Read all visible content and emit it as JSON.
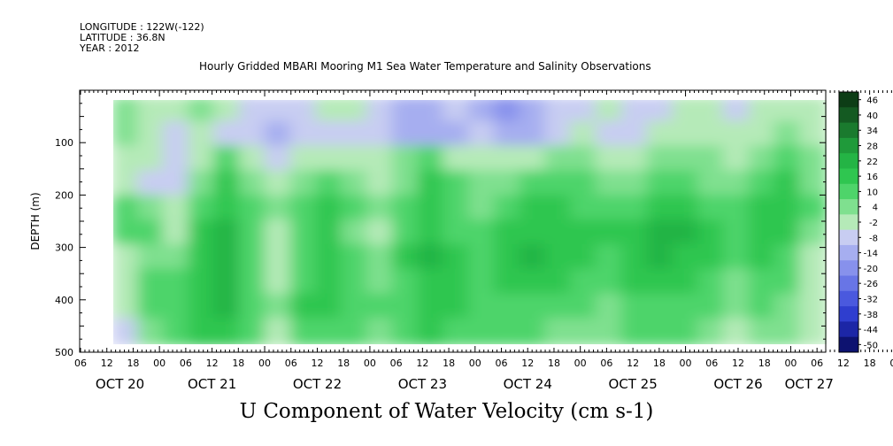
{
  "header": {
    "longitude": "LONGITUDE : 122W(-122)",
    "latitude": "LATITUDE : 36.8N",
    "year": "YEAR : 2012"
  },
  "chart_data": {
    "type": "heatmap",
    "title": "Hourly Gridded MBARI Mooring M1 Sea Water Temperature and Salinity Observations",
    "xlabel": "U Component of Water Velocity (cm s-1)",
    "ylabel": "DEPTH (m)",
    "ylim": [
      500,
      0
    ],
    "y_ticks": [
      100,
      200,
      300,
      400,
      500
    ],
    "x_hour_ticks": [
      "06",
      "12",
      "18",
      "00",
      "06",
      "12",
      "18",
      "00",
      "06",
      "12",
      "18",
      "00",
      "06",
      "12",
      "18",
      "00",
      "06",
      "12",
      "18",
      "00",
      "06",
      "12",
      "18",
      "00",
      "06",
      "12",
      "18",
      "00",
      "06",
      "12",
      "18",
      "00",
      "06"
    ],
    "x_date_labels": [
      "OCT 20",
      "OCT 21",
      "OCT 22",
      "OCT 23",
      "OCT 24",
      "OCT 25",
      "OCT 26",
      "OCT 27"
    ],
    "data_depth_range": [
      15,
      485
    ],
    "colorbar": {
      "levels": [
        46,
        40,
        34,
        28,
        22,
        16,
        10,
        4,
        -2,
        -8,
        -14,
        -20,
        -26,
        -32,
        -38,
        -44,
        -50
      ],
      "colors": [
        "#0d3d16",
        "#145a22",
        "#1a7a2e",
        "#1f9a3a",
        "#24b445",
        "#2fc650",
        "#4ed46a",
        "#7fe08f",
        "#b5eab8",
        "#c8cdf2",
        "#a6aef0",
        "#8791ec",
        "#6875e6",
        "#4a59de",
        "#2f3ecf",
        "#1c26a6",
        "#0d1270"
      ]
    },
    "time_columns": [
      "20/12",
      "20/18",
      "21/00",
      "21/06",
      "21/12",
      "21/18",
      "22/00",
      "22/06",
      "22/12",
      "22/18",
      "23/00",
      "23/06",
      "23/12",
      "23/18",
      "24/00",
      "24/06",
      "24/12",
      "24/18",
      "25/00",
      "25/06",
      "25/12",
      "25/18",
      "26/00",
      "26/06",
      "26/12",
      "26/18",
      "27/00",
      "27/06"
    ],
    "depth_rows": [
      25,
      75,
      125,
      175,
      225,
      275,
      325,
      375,
      425,
      475
    ],
    "values": [
      [
        0,
        -4,
        -8,
        -2,
        -6,
        -10,
        -14,
        -10,
        -8,
        -6,
        -12,
        -18,
        -20,
        -14,
        -16,
        -22,
        -18,
        -14,
        -10,
        -8,
        -12,
        -10,
        -6,
        -8,
        -10,
        -6,
        -4,
        -8
      ],
      [
        -2,
        -6,
        -10,
        -8,
        -12,
        -14,
        -16,
        -14,
        -12,
        -10,
        -14,
        -16,
        -18,
        -16,
        -14,
        -18,
        -16,
        -12,
        -8,
        -10,
        -10,
        -8,
        -4,
        -6,
        -8,
        -4,
        0,
        -6
      ],
      [
        -4,
        -8,
        -10,
        -6,
        4,
        -6,
        -10,
        -8,
        -4,
        -8,
        -6,
        -2,
        4,
        -4,
        -8,
        -6,
        -4,
        0,
        2,
        -4,
        -6,
        -2,
        2,
        -2,
        -4,
        2,
        6,
        -2
      ],
      [
        -6,
        -10,
        -12,
        -2,
        10,
        2,
        -4,
        2,
        6,
        -2,
        -4,
        2,
        10,
        4,
        -2,
        2,
        6,
        8,
        4,
        0,
        2,
        4,
        6,
        2,
        0,
        6,
        10,
        2
      ],
      [
        4,
        2,
        -6,
        8,
        14,
        6,
        -2,
        6,
        10,
        4,
        -2,
        6,
        12,
        6,
        2,
        6,
        10,
        10,
        8,
        6,
        8,
        12,
        14,
        8,
        6,
        12,
        12,
        4
      ],
      [
        6,
        4,
        -4,
        10,
        16,
        8,
        -4,
        4,
        12,
        2,
        -4,
        8,
        14,
        8,
        4,
        10,
        14,
        12,
        10,
        10,
        14,
        16,
        16,
        12,
        8,
        12,
        10,
        2
      ],
      [
        -4,
        2,
        -2,
        12,
        16,
        6,
        -6,
        6,
        14,
        6,
        -2,
        10,
        16,
        10,
        6,
        12,
        16,
        14,
        12,
        8,
        14,
        18,
        14,
        10,
        6,
        10,
        8,
        -4
      ],
      [
        -6,
        6,
        4,
        14,
        18,
        8,
        -4,
        8,
        12,
        8,
        2,
        8,
        14,
        12,
        8,
        10,
        12,
        10,
        8,
        6,
        10,
        12,
        10,
        8,
        2,
        6,
        4,
        -6
      ],
      [
        -8,
        4,
        6,
        14,
        16,
        6,
        -2,
        10,
        10,
        6,
        4,
        6,
        12,
        10,
        6,
        8,
        8,
        6,
        4,
        2,
        6,
        8,
        6,
        4,
        -2,
        4,
        2,
        -8
      ],
      [
        -10,
        0,
        8,
        12,
        14,
        4,
        -4,
        8,
        8,
        4,
        2,
        4,
        10,
        8,
        4,
        4,
        6,
        2,
        0,
        -2,
        4,
        6,
        4,
        2,
        -4,
        2,
        0,
        -8
      ]
    ]
  }
}
